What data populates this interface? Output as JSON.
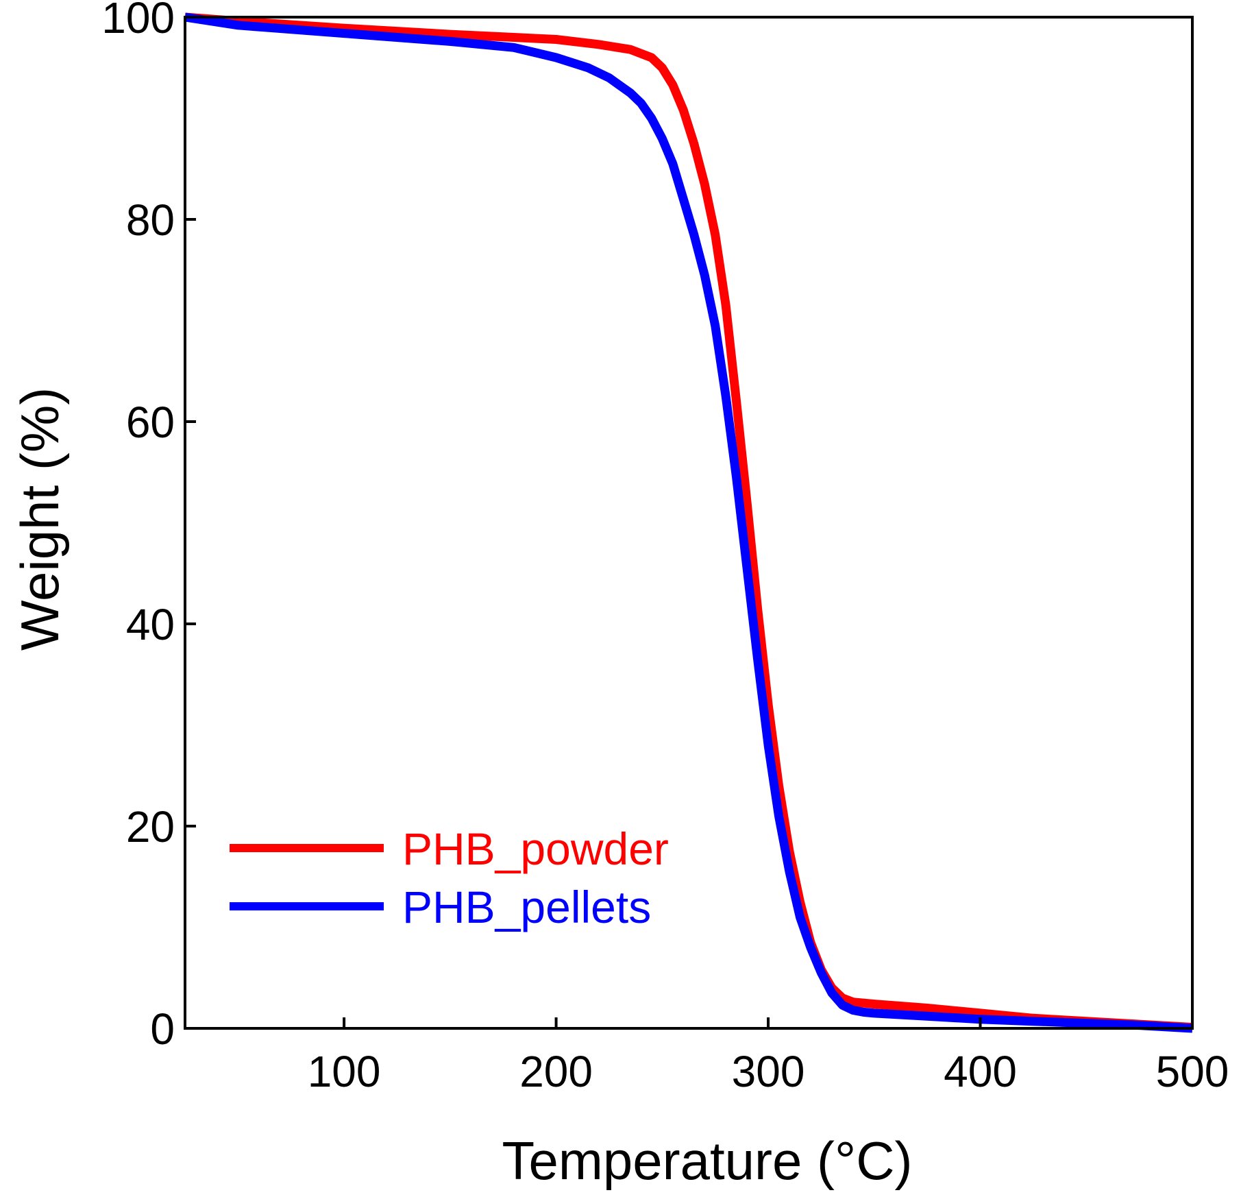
{
  "chart_data": {
    "type": "line",
    "title": "",
    "xlabel": "Temperature (°C)",
    "ylabel": "Weight (%)",
    "xlim": [
      25,
      500
    ],
    "ylim": [
      0,
      100
    ],
    "xticks": [
      100,
      200,
      300,
      400,
      500
    ],
    "yticks": [
      0,
      20,
      40,
      60,
      80,
      100
    ],
    "grid": false,
    "legend_position": "bottom-left",
    "series": [
      {
        "name": "PHB_powder",
        "color": "#ff0000",
        "x": [
          25,
          50,
          100,
          150,
          200,
          220,
          235,
          245,
          250,
          255,
          260,
          265,
          270,
          275,
          280,
          285,
          290,
          295,
          300,
          305,
          310,
          315,
          320,
          325,
          330,
          335,
          340,
          350,
          375,
          400,
          425,
          450,
          475,
          500
        ],
        "y": [
          100,
          99.6,
          98.9,
          98.3,
          97.8,
          97.3,
          96.8,
          96.0,
          95.0,
          93.3,
          90.8,
          87.5,
          83.5,
          78.5,
          71.5,
          62.0,
          52.0,
          41.5,
          32.0,
          24.0,
          17.5,
          12.5,
          8.5,
          5.8,
          4.0,
          3.0,
          2.6,
          2.4,
          2.0,
          1.5,
          1.0,
          0.7,
          0.4,
          0.1
        ]
      },
      {
        "name": "PHB_pellets",
        "color": "#0000ff",
        "x": [
          25,
          50,
          100,
          150,
          180,
          200,
          215,
          225,
          235,
          240,
          245,
          250,
          255,
          260,
          265,
          270,
          275,
          280,
          285,
          290,
          295,
          300,
          305,
          310,
          315,
          320,
          325,
          330,
          335,
          340,
          345,
          350,
          375,
          400,
          425,
          450,
          475,
          500
        ],
        "y": [
          100,
          99.2,
          98.4,
          97.6,
          97.0,
          96.0,
          95.0,
          94.0,
          92.5,
          91.5,
          90.0,
          88.0,
          85.5,
          82.0,
          78.5,
          74.5,
          69.5,
          62.5,
          54.5,
          45.5,
          36.5,
          28.0,
          21.0,
          15.5,
          11.0,
          8.0,
          5.5,
          3.5,
          2.3,
          1.8,
          1.6,
          1.5,
          1.2,
          0.9,
          0.7,
          0.5,
          0.3,
          0.0
        ]
      }
    ]
  }
}
